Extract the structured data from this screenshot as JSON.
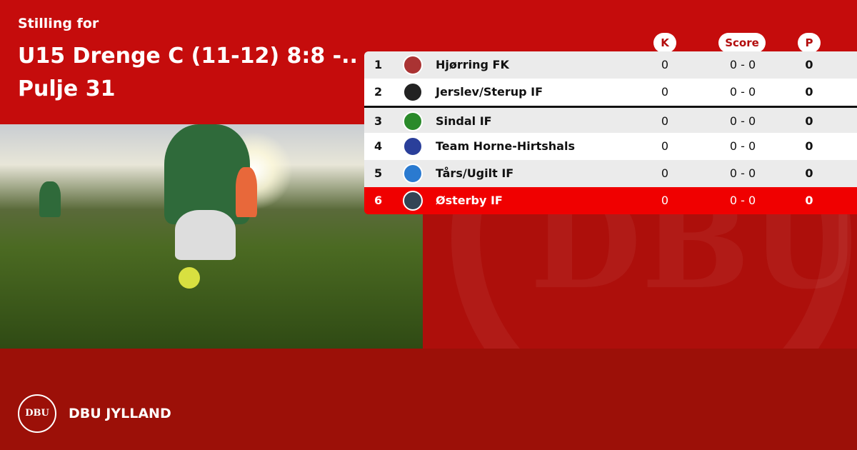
{
  "header": {
    "label": "Stilling for",
    "title": "U15 Drenge C (11-12) 8:8 -.. Pulje 31"
  },
  "columns": {
    "k": "K",
    "score": "Score",
    "p": "P"
  },
  "rows": [
    {
      "pos": "1",
      "team": "Hjørring FK",
      "k": "0",
      "score": "0 - 0",
      "p": "0",
      "logo_color": "#a33"
    },
    {
      "pos": "2",
      "team": "Jerslev/Sterup IF",
      "k": "0",
      "score": "0 - 0",
      "p": "0",
      "logo_color": "#222"
    },
    {
      "pos": "3",
      "team": "Sindal IF",
      "k": "0",
      "score": "0 - 0",
      "p": "0",
      "logo_color": "#2a8a2a"
    },
    {
      "pos": "4",
      "team": "Team Horne-Hirtshals",
      "k": "0",
      "score": "0 - 0",
      "p": "0",
      "logo_color": "#2a3f9a"
    },
    {
      "pos": "5",
      "team": "Tårs/Ugilt IF",
      "k": "0",
      "score": "0 - 0",
      "p": "0",
      "logo_color": "#2a7ad0"
    },
    {
      "pos": "6",
      "team": "Østerby IF",
      "k": "0",
      "score": "0 - 0",
      "p": "0",
      "logo_color": "#345"
    }
  ],
  "footer": {
    "logo_text": "DBU",
    "brand": "DBU JYLLAND"
  },
  "colors": {
    "header_red": "#c50c0c",
    "highlight_red": "#f00000",
    "footer_red": "#9c1008"
  }
}
